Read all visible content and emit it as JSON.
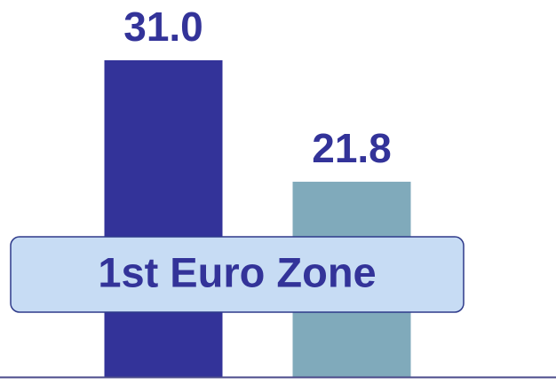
{
  "chart_data": {
    "type": "bar",
    "categories": [
      null,
      null
    ],
    "values": [
      31.0,
      21.8
    ],
    "value_labels": [
      "31.0",
      "21.8"
    ],
    "colors": [
      "#333399",
      "#80aabb"
    ],
    "annotation": "1st Euro Zone"
  }
}
